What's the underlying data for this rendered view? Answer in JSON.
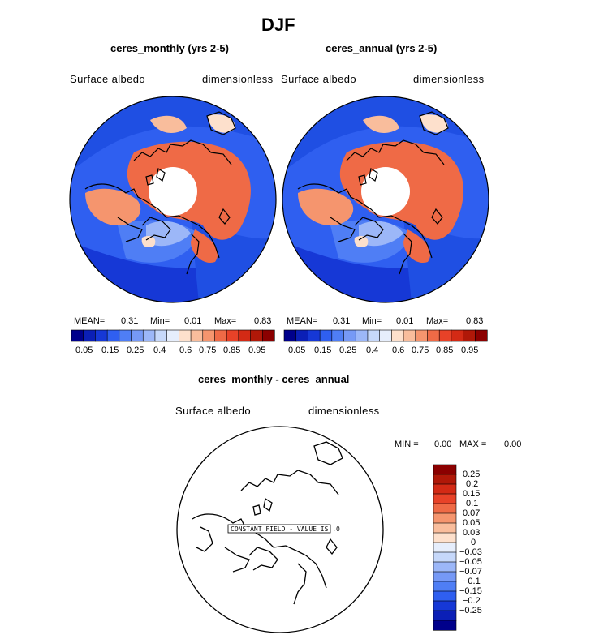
{
  "page_title": "DJF",
  "panels": [
    {
      "subtitle": "ceres_monthly (yrs 2-5)",
      "variable": "Surface albedo",
      "units": "dimensionless",
      "stats": {
        "mean_label": "MEAN=",
        "mean": "0.31",
        "min_label": "Min=",
        "min": "0.01",
        "max_label": "Max=",
        "max": "0.83"
      }
    },
    {
      "subtitle": "ceres_annual (yrs 2-5)",
      "variable": "Surface albedo",
      "units": "dimensionless",
      "stats": {
        "mean_label": "MEAN=",
        "mean": "0.31",
        "min_label": "Min=",
        "min": "0.01",
        "max_label": "Max=",
        "max": "0.83"
      }
    }
  ],
  "colorbar_top": {
    "colors": [
      "#00008b",
      "#0b1fb6",
      "#1638d6",
      "#2f5ff0",
      "#4f7ef5",
      "#7699f6",
      "#9cb7f8",
      "#c6d8fa",
      "#e6eefc",
      "#fde0cc",
      "#f9bd9c",
      "#f5956e",
      "#ef6a46",
      "#e84228",
      "#d32a15",
      "#b01808",
      "#8b0000"
    ],
    "tick_labels": [
      "0.05",
      "0.15",
      "0.25",
      "0.4",
      "0.6",
      "0.75",
      "0.85",
      "0.95"
    ]
  },
  "diff_panel": {
    "subtitle": "ceres_monthly - ceres_annual",
    "variable": "Surface albedo",
    "units": "dimensionless",
    "min_label": "MIN =",
    "min": "0.00",
    "max_label": "MAX =",
    "max": "0.00",
    "constant_field_label": "CONSTANT FIELD - VALUE IS .0",
    "colorbar": {
      "colors": [
        "#8b0000",
        "#b01808",
        "#d32a15",
        "#e84228",
        "#ef6a46",
        "#f5956e",
        "#f9bd9c",
        "#fde0cc",
        "#e6eefc",
        "#c6d8fa",
        "#9cb7f8",
        "#7699f6",
        "#4f7ef5",
        "#2f5ff0",
        "#1638d6",
        "#0b1fb6",
        "#00008b"
      ],
      "tick_labels": [
        "0.25",
        "0.2",
        "0.15",
        "0.1",
        "0.07",
        "0.05",
        "0.03",
        "0",
        "−0.03",
        "−0.05",
        "−0.07",
        "−0.1",
        "−0.15",
        "−0.2",
        "−0.25"
      ]
    }
  }
}
